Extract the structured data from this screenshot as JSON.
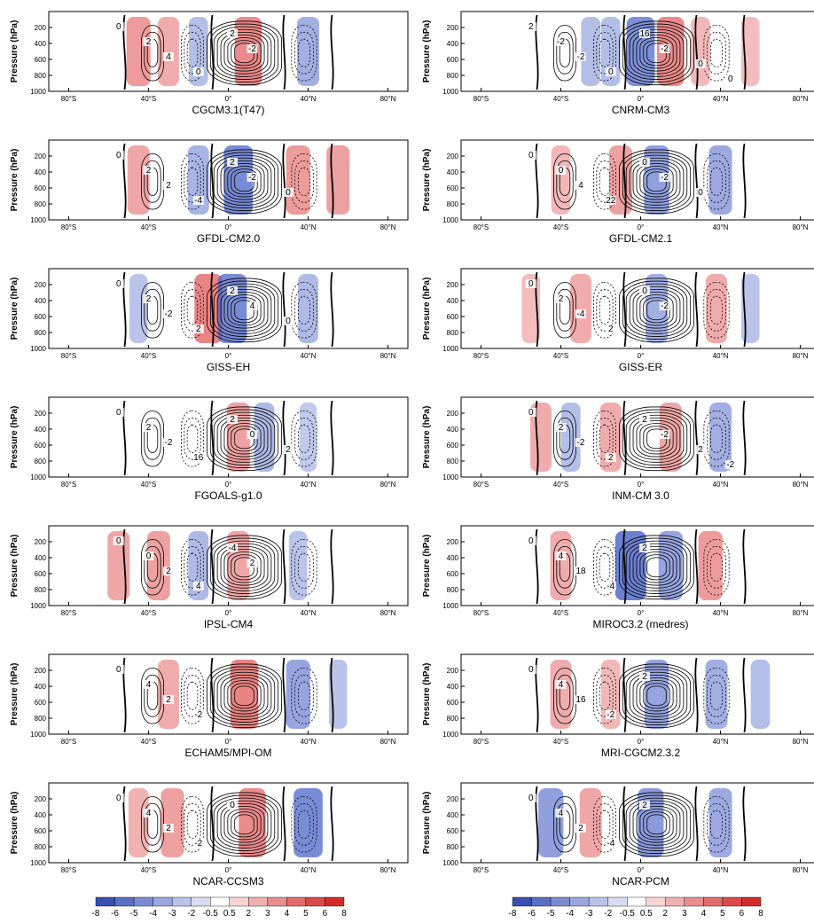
{
  "figure": {
    "ylabel": "Pressure (hPa)",
    "x_ticks": [
      "80°S",
      "40°S",
      "0°",
      "40°N",
      "80°N"
    ],
    "y_ticks": [
      "200",
      "400",
      "600",
      "800",
      "1000"
    ]
  },
  "chart_data": [
    {
      "type": "heatmap",
      "title": "CGCM3.1(T47)",
      "xlim": [
        -90,
        90
      ],
      "ylim": [
        1000,
        0
      ],
      "contour_labels": [
        "0",
        "2",
        "4",
        "0",
        "2",
        "-2"
      ],
      "cells": [
        {
          "lat": -45,
          "strength": 24,
          "color": "red"
        },
        {
          "lat": -30,
          "strength": 18,
          "color": "red"
        },
        {
          "lat": -15,
          "strength": 14,
          "color": "blue"
        },
        {
          "lat": 10,
          "strength": 30,
          "color": "red"
        },
        {
          "lat": 40,
          "strength": 20,
          "color": "blue"
        }
      ]
    },
    {
      "type": "heatmap",
      "title": "CNRM-CM3",
      "xlim": [
        -90,
        90
      ],
      "ylim": [
        1000,
        0
      ],
      "contour_labels": [
        "2",
        "-2",
        "-2",
        "0",
        "16",
        "-2",
        "0",
        "0"
      ],
      "cells": [
        {
          "lat": -25,
          "strength": 14,
          "color": "blue"
        },
        {
          "lat": -15,
          "strength": 14,
          "color": "blue"
        },
        {
          "lat": 0,
          "strength": 32,
          "color": "blue"
        },
        {
          "lat": 15,
          "strength": 30,
          "color": "red"
        },
        {
          "lat": 30,
          "strength": 14,
          "color": "red"
        },
        {
          "lat": 55,
          "strength": 12,
          "color": "red"
        }
      ]
    },
    {
      "type": "heatmap",
      "title": "GFDL-CM2.0",
      "xlim": [
        -90,
        90
      ],
      "ylim": [
        1000,
        0
      ],
      "contour_labels": [
        "0",
        "2",
        "2",
        "-4",
        "2",
        "-2",
        "0"
      ],
      "cells": [
        {
          "lat": -45,
          "strength": 20,
          "color": "red"
        },
        {
          "lat": -15,
          "strength": 18,
          "color": "blue"
        },
        {
          "lat": 5,
          "strength": 34,
          "color": "blue"
        },
        {
          "lat": 35,
          "strength": 24,
          "color": "red"
        },
        {
          "lat": 55,
          "strength": 22,
          "color": "red"
        }
      ]
    },
    {
      "type": "heatmap",
      "title": "GFDL-CM2.1",
      "xlim": [
        -90,
        90
      ],
      "ylim": [
        1000,
        0
      ],
      "contour_labels": [
        "0",
        "0",
        "4",
        "22",
        "0",
        "-2",
        "0"
      ],
      "cells": [
        {
          "lat": -40,
          "strength": 14,
          "color": "red"
        },
        {
          "lat": -10,
          "strength": 22,
          "color": "red"
        },
        {
          "lat": 8,
          "strength": 26,
          "color": "blue"
        },
        {
          "lat": 40,
          "strength": 22,
          "color": "blue"
        }
      ]
    },
    {
      "type": "heatmap",
      "title": "GISS-EH",
      "xlim": [
        -90,
        90
      ],
      "ylim": [
        1000,
        0
      ],
      "contour_labels": [
        "0",
        "2",
        "-2",
        "2",
        "2",
        "4",
        "0"
      ],
      "cells": [
        {
          "lat": -45,
          "strength": 12,
          "color": "blue"
        },
        {
          "lat": -10,
          "strength": 32,
          "color": "red"
        },
        {
          "lat": 2,
          "strength": 34,
          "color": "blue"
        },
        {
          "lat": 40,
          "strength": 16,
          "color": "blue"
        }
      ]
    },
    {
      "type": "heatmap",
      "title": "GISS-ER",
      "xlim": [
        -90,
        90
      ],
      "ylim": [
        1000,
        0
      ],
      "contour_labels": [
        "0",
        "2",
        "-4",
        "2",
        "0",
        "-2"
      ],
      "cells": [
        {
          "lat": -55,
          "strength": 12,
          "color": "red"
        },
        {
          "lat": -30,
          "strength": 18,
          "color": "red"
        },
        {
          "lat": 8,
          "strength": 20,
          "color": "blue"
        },
        {
          "lat": 38,
          "strength": 18,
          "color": "red"
        },
        {
          "lat": 55,
          "strength": 12,
          "color": "blue"
        }
      ]
    },
    {
      "type": "heatmap",
      "title": "FGOALS-g1.0",
      "xlim": [
        -90,
        90
      ],
      "ylim": [
        1000,
        0
      ],
      "contour_labels": [
        "0",
        "2",
        "-2",
        "16",
        "2",
        "0",
        "2"
      ],
      "cells": [
        {
          "lat": 5,
          "strength": 22,
          "color": "red"
        },
        {
          "lat": 18,
          "strength": 16,
          "color": "blue"
        },
        {
          "lat": 40,
          "strength": 10,
          "color": "blue"
        }
      ]
    },
    {
      "type": "heatmap",
      "title": "INM-CM 3.0",
      "xlim": [
        -90,
        90
      ],
      "ylim": [
        1000,
        0
      ],
      "contour_labels": [
        "0",
        "2",
        "-2",
        "2",
        "2",
        "-2",
        "2",
        "-2"
      ],
      "cells": [
        {
          "lat": -50,
          "strength": 18,
          "color": "red"
        },
        {
          "lat": -35,
          "strength": 14,
          "color": "blue"
        },
        {
          "lat": -15,
          "strength": 18,
          "color": "red"
        },
        {
          "lat": 15,
          "strength": 20,
          "color": "red"
        },
        {
          "lat": 40,
          "strength": 20,
          "color": "blue"
        }
      ]
    },
    {
      "type": "heatmap",
      "title": "IPSL-CM4",
      "xlim": [
        -90,
        90
      ],
      "ylim": [
        1000,
        0
      ],
      "contour_labels": [
        "0",
        "0",
        "2",
        "4",
        "-4",
        "2"
      ],
      "cells": [
        {
          "lat": -55,
          "strength": 20,
          "color": "red"
        },
        {
          "lat": -35,
          "strength": 22,
          "color": "red"
        },
        {
          "lat": -15,
          "strength": 16,
          "color": "blue"
        },
        {
          "lat": 5,
          "strength": 20,
          "color": "red"
        },
        {
          "lat": 35,
          "strength": 12,
          "color": "blue"
        }
      ]
    },
    {
      "type": "heatmap",
      "title": "MIROC3.2 (medres)",
      "xlim": [
        -90,
        90
      ],
      "ylim": [
        1000,
        0
      ],
      "contour_labels": [
        "0",
        "4",
        "18",
        "-4",
        "2"
      ],
      "cells": [
        {
          "lat": -40,
          "strength": 18,
          "color": "red"
        },
        {
          "lat": -5,
          "strength": 38,
          "color": "blue"
        },
        {
          "lat": 15,
          "strength": 24,
          "color": "blue"
        },
        {
          "lat": 35,
          "strength": 24,
          "color": "red"
        }
      ]
    },
    {
      "type": "heatmap",
      "title": "ECHAM5/MPI-OM",
      "xlim": [
        -90,
        90
      ],
      "ylim": [
        1000,
        0
      ],
      "contour_labels": [
        "0",
        "4",
        "2",
        "-2"
      ],
      "cells": [
        {
          "lat": -30,
          "strength": 18,
          "color": "red"
        },
        {
          "lat": 8,
          "strength": 32,
          "color": "red"
        },
        {
          "lat": 35,
          "strength": 24,
          "color": "blue"
        },
        {
          "lat": 55,
          "strength": 12,
          "color": "blue"
        }
      ]
    },
    {
      "type": "heatmap",
      "title": "MRI-CGCM2.3.2",
      "xlim": [
        -90,
        90
      ],
      "ylim": [
        1000,
        0
      ],
      "contour_labels": [
        "0",
        "4",
        "16",
        "-2",
        "2"
      ],
      "cells": [
        {
          "lat": -40,
          "strength": 18,
          "color": "red"
        },
        {
          "lat": -15,
          "strength": 14,
          "color": "red"
        },
        {
          "lat": 8,
          "strength": 24,
          "color": "blue"
        },
        {
          "lat": 38,
          "strength": 20,
          "color": "blue"
        },
        {
          "lat": 60,
          "strength": 14,
          "color": "blue"
        }
      ]
    },
    {
      "type": "heatmap",
      "title": "NCAR-CCSM3",
      "xlim": [
        -90,
        90
      ],
      "ylim": [
        1000,
        0
      ],
      "contour_labels": [
        "0",
        "4",
        "2",
        "-2",
        "0"
      ],
      "cells": [
        {
          "lat": -45,
          "strength": 16,
          "color": "red"
        },
        {
          "lat": -28,
          "strength": 22,
          "color": "red"
        },
        {
          "lat": 12,
          "strength": 30,
          "color": "red"
        },
        {
          "lat": 40,
          "strength": 34,
          "color": "blue"
        }
      ]
    },
    {
      "type": "heatmap",
      "title": "NCAR-PCM",
      "xlim": [
        -90,
        90
      ],
      "ylim": [
        1000,
        0
      ],
      "contour_labels": [
        "0",
        "4",
        "2",
        "-4",
        "2"
      ],
      "cells": [
        {
          "lat": -45,
          "strength": 26,
          "color": "blue"
        },
        {
          "lat": -25,
          "strength": 20,
          "color": "red"
        },
        {
          "lat": 5,
          "strength": 28,
          "color": "blue"
        },
        {
          "lat": 40,
          "strength": 22,
          "color": "blue"
        }
      ]
    }
  ],
  "colorbar": {
    "labels": [
      "-8",
      "-6",
      "-5",
      "-4",
      "-3",
      "-2",
      "-0.5",
      "0.5",
      "2",
      "3",
      "4",
      "5",
      "6",
      "8"
    ],
    "colors": [
      "#3a4fb0",
      "#5a6ec4",
      "#7a8bd2",
      "#9aa6dd",
      "#b9c2e7",
      "#d8dcf2",
      "#ffffff",
      "#f6d4d4",
      "#efb0b0",
      "#e88c8c",
      "#e26a6a",
      "#dc4a4a",
      "#d52a2a"
    ]
  }
}
